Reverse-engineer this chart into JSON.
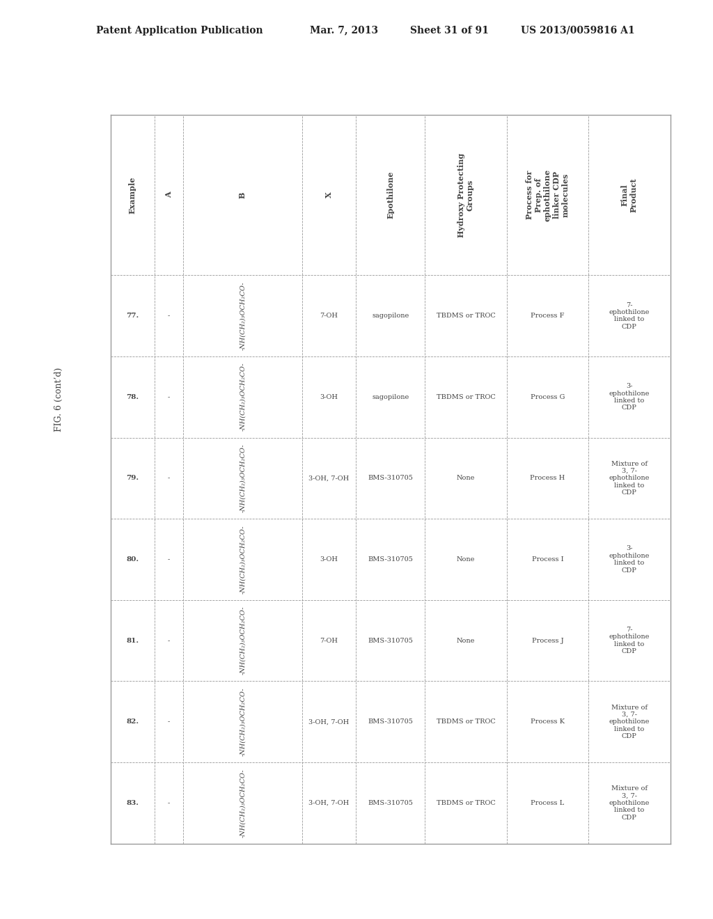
{
  "header_line1": "Patent Application Publication",
  "header_date": "Mar. 7, 2013",
  "header_sheet": "Sheet 31 of 91",
  "header_patent": "US 2013/0059816 A1",
  "fig_label": "FIG. 6 (cont’d)",
  "col_headers": [
    "Example",
    "A",
    "B",
    "X",
    "Epothilone",
    "Hydroxy Protecting\nGroups",
    "Process for\nPrep. of\nephothilone\nlinker CDP\nmolecules",
    "Final\nProduct"
  ],
  "rows": [
    {
      "example": "77.",
      "A": "-",
      "B": "-NH(CH₂)₃OCH₂CO-",
      "X": "7-OH",
      "epothilone": "sagopilone",
      "hydroxy": "TBDMS or TROC",
      "process": "Process F",
      "final": "7-\nephothilone\nlinked to\nCDP"
    },
    {
      "example": "78.",
      "A": "-",
      "B": "-NH(CH₂)₃OCH₂CO-",
      "X": "3-OH",
      "epothilone": "sagopilone",
      "hydroxy": "TBDMS or TROC",
      "process": "Process G",
      "final": "3-\nephothilone\nlinked to\nCDP"
    },
    {
      "example": "79.",
      "A": "-",
      "B": "-NH(CH₂)₃OCH₂CO-",
      "X": "3-OH, 7-OH",
      "epothilone": "BMS-310705",
      "hydroxy": "None",
      "process": "Process H",
      "final": "Mixture of\n3, 7-\nephothilone\nlinked to\nCDP"
    },
    {
      "example": "80.",
      "A": "-",
      "B": "-NH(CH₂)₃OCH₂CO-",
      "X": "3-OH",
      "epothilone": "BMS-310705",
      "hydroxy": "None",
      "process": "Process I",
      "final": "3-\nephothilone\nlinked to\nCDP"
    },
    {
      "example": "81.",
      "A": "-",
      "B": "-NH(CH₂)₃OCH₂CO-",
      "X": "7-OH",
      "epothilone": "BMS-310705",
      "hydroxy": "None",
      "process": "Process J",
      "final": "7-\nephothilone\nlinked to\nCDP"
    },
    {
      "example": "82.",
      "A": "-",
      "B": "-NH(CH₂)₃OCH₂CO-",
      "X": "3-OH, 7-OH",
      "epothilone": "BMS-310705",
      "hydroxy": "TBDMS or TROC",
      "process": "Process K",
      "final": "Mixture of\n3, 7-\nephothilone\nlinked to\nCDP"
    },
    {
      "example": "83.",
      "A": "-",
      "B": "-NH(CH₂)₃OCH₂CO-",
      "X": "3-OH, 7-OH",
      "epothilone": "BMS-310705",
      "hydroxy": "TBDMS or TROC",
      "process": "Process L",
      "final": "Mixture of\n3, 7-\nephothilone\nlinked to\nCDP"
    }
  ],
  "background_color": "#ffffff",
  "text_color": "#444444",
  "border_color": "#999999",
  "header_font_size": 8,
  "cell_font_size": 7,
  "title_font_size": 10
}
